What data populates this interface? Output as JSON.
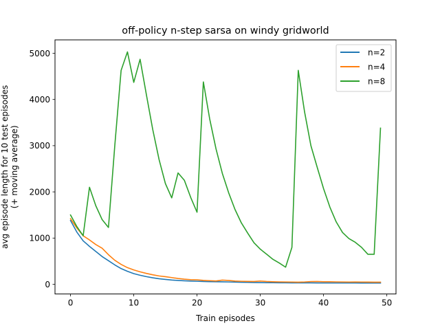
{
  "chart_data": {
    "type": "line",
    "title": "off-policy n-step sarsa on windy gridworld",
    "xlabel": "Train episodes",
    "ylabel_lines": [
      "avg episode length for 10 test episodes",
      "(+ moving average)"
    ],
    "xlim": [
      -2.45,
      51.45
    ],
    "ylim": [
      -210,
      5290
    ],
    "xticks": [
      0,
      10,
      20,
      30,
      40,
      50
    ],
    "yticks": [
      0,
      1000,
      2000,
      3000,
      4000,
      5000
    ],
    "legend_position": "upper right",
    "x": [
      0,
      1,
      2,
      3,
      4,
      5,
      6,
      7,
      8,
      9,
      10,
      11,
      12,
      13,
      14,
      15,
      16,
      17,
      18,
      19,
      20,
      21,
      22,
      23,
      24,
      25,
      26,
      27,
      28,
      29,
      30,
      31,
      32,
      33,
      34,
      35,
      36,
      37,
      38,
      39,
      40,
      41,
      42,
      43,
      44,
      45,
      46,
      47,
      48,
      49
    ],
    "series": [
      {
        "name": "n=2",
        "color": "#1f77b4",
        "values": [
          1380,
          1130,
          940,
          820,
          710,
          600,
          510,
          420,
          340,
          280,
          230,
          195,
          165,
          140,
          120,
          105,
          92,
          82,
          75,
          70,
          65,
          60,
          57,
          55,
          53,
          50,
          47,
          44,
          41,
          38,
          36,
          35,
          34,
          33,
          32,
          31,
          31,
          30,
          30,
          29,
          29,
          29,
          28,
          28,
          28,
          28,
          27,
          27,
          27,
          27
        ]
      },
      {
        "name": "n=4",
        "color": "#ff7f0e",
        "values": [
          1420,
          1220,
          1050,
          960,
          860,
          780,
          640,
          520,
          430,
          360,
          310,
          270,
          235,
          205,
          180,
          165,
          145,
          125,
          110,
          100,
          95,
          85,
          78,
          72,
          90,
          82,
          70,
          65,
          62,
          60,
          70,
          60,
          55,
          52,
          50,
          48,
          46,
          50,
          58,
          60,
          55,
          55,
          52,
          50,
          48,
          50,
          48,
          47,
          46,
          45
        ]
      },
      {
        "name": "n=8",
        "color": "#2ca02c",
        "values": [
          1500,
          1250,
          1050,
          2100,
          1700,
          1400,
          1230,
          3000,
          4630,
          5030,
          4370,
          4870,
          4100,
          3350,
          2700,
          2180,
          1870,
          2410,
          2250,
          1880,
          1560,
          4380,
          3580,
          2930,
          2400,
          1980,
          1620,
          1330,
          1110,
          900,
          760,
          650,
          540,
          460,
          370,
          800,
          4630,
          3730,
          3000,
          2530,
          2070,
          1670,
          1350,
          1120,
          990,
          910,
          800,
          650,
          650,
          3380
        ]
      }
    ]
  }
}
